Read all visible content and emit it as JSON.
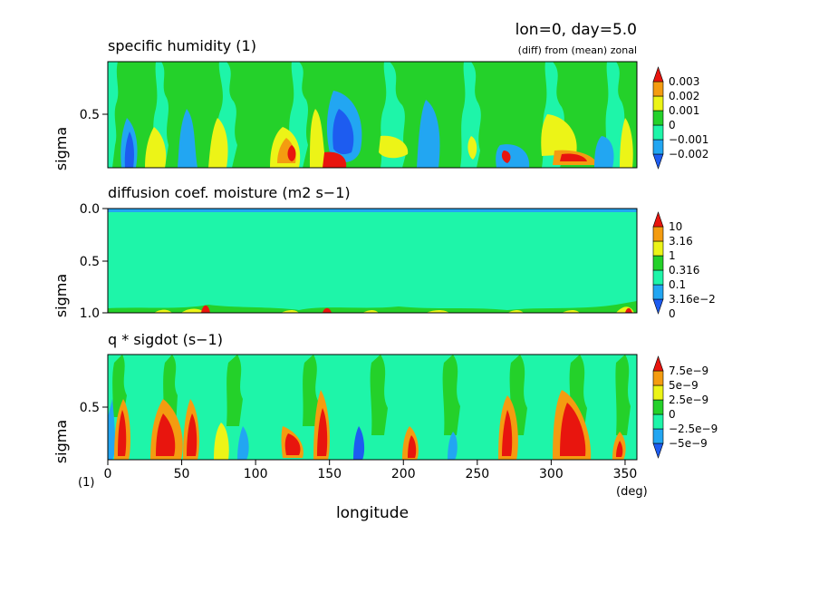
{
  "header": {
    "run_info": "lon=0, day=5.0",
    "subtitle": "(diff) from (mean) zonal"
  },
  "colors": {
    "red": "#e8150e",
    "orange": "#f49c10",
    "yellow": "#ecf417",
    "green": "#24d12a",
    "teal": "#1ef5a9",
    "lightblue": "#22a6f2",
    "blue": "#1d5cf0"
  },
  "x_axis": {
    "label": "longitude",
    "unit": "(deg)",
    "ticks": [
      "0",
      "50",
      "100",
      "150",
      "200",
      "250",
      "300",
      "350"
    ],
    "range": [
      0,
      358
    ],
    "panel_marker": "(1)"
  },
  "chart_data": [
    {
      "type": "heatmap",
      "title": "specific humidity (1)",
      "xlabel": "longitude",
      "ylabel": "sigma",
      "y_ticks": [
        "0.5"
      ],
      "ylim": [
        1.0,
        0.0
      ],
      "legend": {
        "placement": "right",
        "labels": [
          "0.003",
          "0.002",
          "0.001",
          "0",
          "−0.001",
          "−0.002"
        ],
        "colors": [
          "#e8150e",
          "#f49c10",
          "#ecf417",
          "#24d12a",
          "#1ef5a9",
          "#22a6f2",
          "#1d5cf0"
        ]
      }
    },
    {
      "type": "heatmap",
      "title": "diffusion coef. moisture (m2 s−1)",
      "xlabel": "longitude",
      "ylabel": "sigma",
      "y_ticks": [
        "0.0",
        "0.5",
        "1.0"
      ],
      "ylim": [
        1.0,
        0.0
      ],
      "legend": {
        "placement": "right",
        "labels": [
          "10",
          "3.16",
          "1",
          "0.316",
          "0.1",
          "3.16e−2",
          "0"
        ],
        "colors": [
          "#e8150e",
          "#f49c10",
          "#ecf417",
          "#24d12a",
          "#1ef5a9",
          "#22a6f2",
          "#1d5cf0"
        ]
      }
    },
    {
      "type": "heatmap",
      "title": "q * sigdot (s−1)",
      "xlabel": "longitude",
      "ylabel": "sigma",
      "y_ticks": [
        "0.5"
      ],
      "ylim": [
        1.0,
        0.0
      ],
      "legend": {
        "placement": "right",
        "labels": [
          "7.5e−9",
          "5e−9",
          "2.5e−9",
          "0",
          "−2.5e−9",
          "−5e−9"
        ],
        "colors": [
          "#e8150e",
          "#f49c10",
          "#ecf417",
          "#24d12a",
          "#1ef5a9",
          "#22a6f2",
          "#1d5cf0"
        ]
      }
    }
  ]
}
